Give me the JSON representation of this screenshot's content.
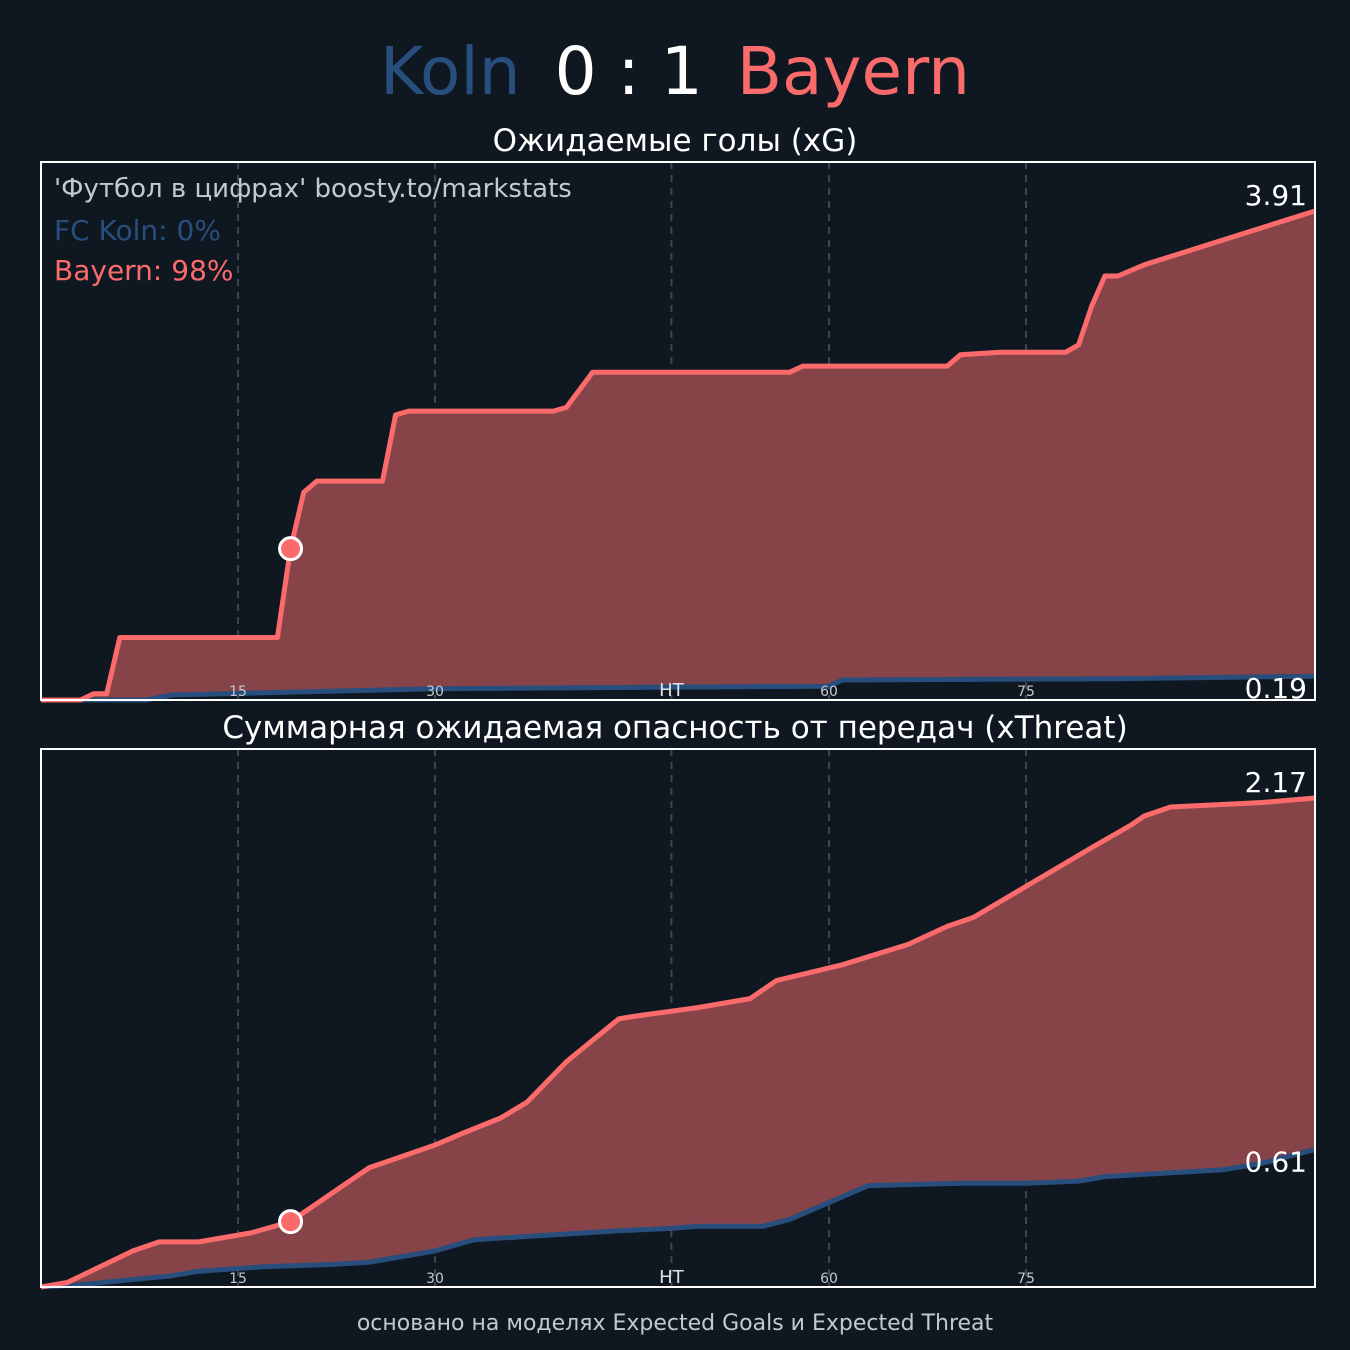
{
  "header": {
    "home_team": "Koln",
    "score": "0 : 1",
    "away_team": "Bayern"
  },
  "colors": {
    "background": "#0f1821",
    "home": "#284e7e",
    "away": "#fb6b6b",
    "fill": "#874448",
    "grid": "#3c464f",
    "frame": "#ffffff"
  },
  "credit": "'Футбол в цифрах' boosty.to/markstats",
  "win_probability": {
    "home_label": "FC Koln: 0%",
    "away_label": "Bayern: 98%"
  },
  "footer": "основано на моделях Expected Goals и Expected Threat",
  "chart_data": [
    {
      "type": "area",
      "title": "Ожидаемые голы (xG)",
      "xlim": [
        0,
        97
      ],
      "ylim": [
        0,
        3.91
      ],
      "grid": true,
      "x_ticks": [
        15,
        30,
        48,
        60,
        75
      ],
      "x_tick_labels": [
        "15",
        "30",
        "HT",
        "60",
        "75"
      ],
      "final_labels": {
        "away": "3.91",
        "home": "0.19"
      },
      "goal_marker": {
        "team": "Bayern",
        "x": 19,
        "y": 1.21
      },
      "series": [
        {
          "name": "Bayern",
          "x": [
            0,
            3,
            4,
            5,
            6,
            14,
            18,
            19,
            20,
            21,
            22,
            23,
            26,
            27,
            28,
            29,
            39,
            40,
            42,
            48,
            57,
            58,
            69,
            70,
            73,
            74,
            78,
            79,
            80,
            81,
            82,
            84,
            97
          ],
          "y": [
            0,
            0,
            0.05,
            0.05,
            0.5,
            0.5,
            0.5,
            1.21,
            1.66,
            1.75,
            1.75,
            1.75,
            1.75,
            2.28,
            2.31,
            2.31,
            2.31,
            2.34,
            2.62,
            2.62,
            2.62,
            2.67,
            2.67,
            2.76,
            2.78,
            2.78,
            2.78,
            2.84,
            3.15,
            3.39,
            3.39,
            3.48,
            3.91
          ]
        },
        {
          "name": "FC Koln",
          "x": [
            0,
            8,
            10,
            30,
            60,
            61,
            82,
            97
          ],
          "y": [
            0,
            0,
            0.04,
            0.09,
            0.11,
            0.16,
            0.17,
            0.19
          ]
        }
      ]
    },
    {
      "type": "area",
      "title": "Суммарная ожидаемая опасность от передач (xThreat)",
      "xlim": [
        0,
        97
      ],
      "ylim": [
        0,
        2.17
      ],
      "grid": true,
      "x_ticks": [
        15,
        30,
        48,
        60,
        75
      ],
      "x_tick_labels": [
        "15",
        "30",
        "HT",
        "60",
        "75"
      ],
      "final_labels": {
        "away": "2.17",
        "home": "0.61"
      },
      "goal_marker": {
        "team": "Bayern",
        "x": 19,
        "y": 0.29
      },
      "series": [
        {
          "name": "Bayern",
          "x": [
            0,
            2,
            7,
            9,
            12,
            16,
            19,
            23,
            25,
            27,
            30,
            32,
            35,
            37,
            40,
            44,
            45,
            50,
            54,
            56,
            61,
            66,
            69,
            71,
            80,
            83,
            84,
            86,
            93,
            97
          ],
          "y": [
            0,
            0.02,
            0.16,
            0.2,
            0.2,
            0.24,
            0.29,
            0.45,
            0.53,
            0.57,
            0.63,
            0.68,
            0.75,
            0.82,
            1.0,
            1.19,
            1.2,
            1.24,
            1.28,
            1.36,
            1.43,
            1.52,
            1.6,
            1.64,
            1.95,
            2.05,
            2.09,
            2.13,
            2.15,
            2.17
          ]
        },
        {
          "name": "FC Koln",
          "x": [
            0,
            3,
            10,
            12,
            17,
            22,
            25,
            30,
            33,
            44,
            48,
            50,
            55,
            57,
            63,
            70,
            75,
            79,
            81,
            90,
            93,
            97
          ],
          "y": [
            0,
            0.01,
            0.05,
            0.07,
            0.09,
            0.1,
            0.11,
            0.16,
            0.21,
            0.25,
            0.26,
            0.27,
            0.27,
            0.3,
            0.45,
            0.46,
            0.46,
            0.47,
            0.49,
            0.52,
            0.55,
            0.61
          ]
        }
      ]
    }
  ]
}
